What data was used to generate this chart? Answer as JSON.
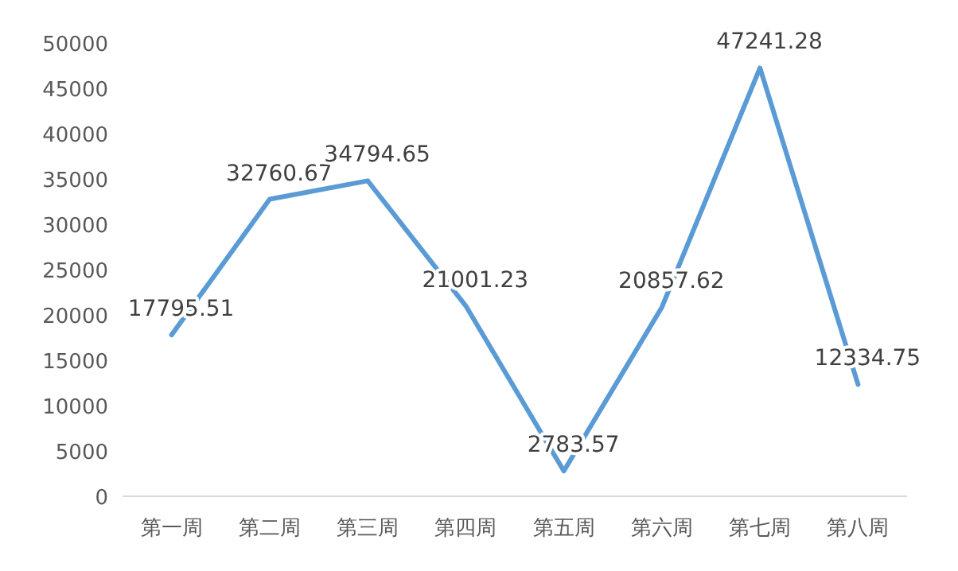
{
  "chart_data": {
    "type": "line",
    "categories": [
      "第一周",
      "第二周",
      "第三周",
      "第四周",
      "第五周",
      "第六周",
      "第七周",
      "第八周"
    ],
    "series": [
      {
        "color": "#5b9bd5",
        "values": [
          17795.51,
          32760.67,
          34794.65,
          21001.23,
          2783.57,
          20857.62,
          47241.28,
          12334.75
        ]
      }
    ],
    "ylim": [
      0,
      50000
    ],
    "yticks": [
      0,
      5000,
      10000,
      15000,
      20000,
      25000,
      30000,
      35000,
      40000,
      45000,
      50000
    ],
    "data_labels": true,
    "marker": "none",
    "grid": false
  }
}
